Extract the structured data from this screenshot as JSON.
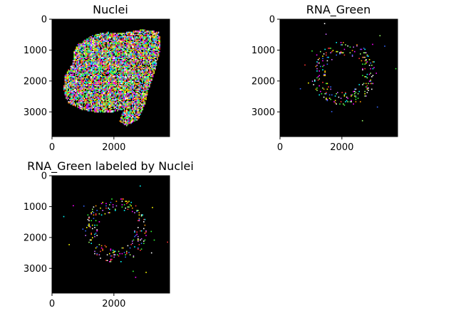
{
  "figure": {
    "background": "#ffffff",
    "panel_background": "#000000",
    "point_colors": [
      "#ff00ff",
      "#00ffff",
      "#ffff00",
      "#33ff33",
      "#ff3333",
      "#3366ff",
      "#ffffff",
      "#ff9900",
      "#99ff66",
      "#cc66ff"
    ]
  },
  "chart_data": [
    {
      "type": "heatmap",
      "title": "Nuclei",
      "xlabel": "",
      "ylabel": "",
      "xlim": [
        0,
        3800
      ],
      "ylim": [
        3800,
        0
      ],
      "xticks": [
        0,
        2000
      ],
      "yticks": [
        0,
        1000,
        2000,
        3000
      ],
      "grid": false,
      "content": "dense multicolor labeled nuclei forming one large blob",
      "region": {
        "kind": "blob",
        "outline": [
          [
            800,
            800
          ],
          [
            1300,
            500
          ],
          [
            1700,
            400
          ],
          [
            2300,
            420
          ],
          [
            2900,
            320
          ],
          [
            3450,
            380
          ],
          [
            3500,
            900
          ],
          [
            3300,
            1700
          ],
          [
            3100,
            2300
          ],
          [
            3000,
            2700
          ],
          [
            2800,
            3200
          ],
          [
            2400,
            3450
          ],
          [
            2150,
            3300
          ],
          [
            2300,
            2900
          ],
          [
            1900,
            3000
          ],
          [
            1400,
            3000
          ],
          [
            900,
            2900
          ],
          [
            500,
            2700
          ],
          [
            350,
            2300
          ],
          [
            400,
            1800
          ],
          [
            650,
            1400
          ],
          [
            700,
            1000
          ]
        ],
        "density": 0.85
      }
    },
    {
      "type": "heatmap",
      "title": "RNA_Green",
      "xlabel": "",
      "ylabel": "",
      "xlim": [
        0,
        3800
      ],
      "ylim": [
        3800,
        0
      ],
      "xticks": [
        0,
        2000
      ],
      "yticks": [
        0,
        1000,
        2000,
        3000
      ],
      "grid": false,
      "content": "sparse multicolor RNA spots arranged in a ring",
      "region": {
        "kind": "ring",
        "center": [
          2050,
          1750
        ],
        "inner_radius": 600,
        "outer_radius": 1050,
        "density": 0.13
      }
    },
    {
      "type": "heatmap",
      "title": "RNA_Green labeled by Nuclei",
      "xlabel": "",
      "ylabel": "",
      "xlim": [
        0,
        3800
      ],
      "ylim": [
        3800,
        0
      ],
      "xticks": [
        0,
        2000
      ],
      "yticks": [
        0,
        1000,
        2000,
        3000
      ],
      "grid": false,
      "content": "sparse multicolor RNA spots colored by parent nucleus, ring shaped",
      "region": {
        "kind": "ring",
        "center": [
          2050,
          1750
        ],
        "inner_radius": 600,
        "outer_radius": 1050,
        "density": 0.13
      }
    }
  ]
}
